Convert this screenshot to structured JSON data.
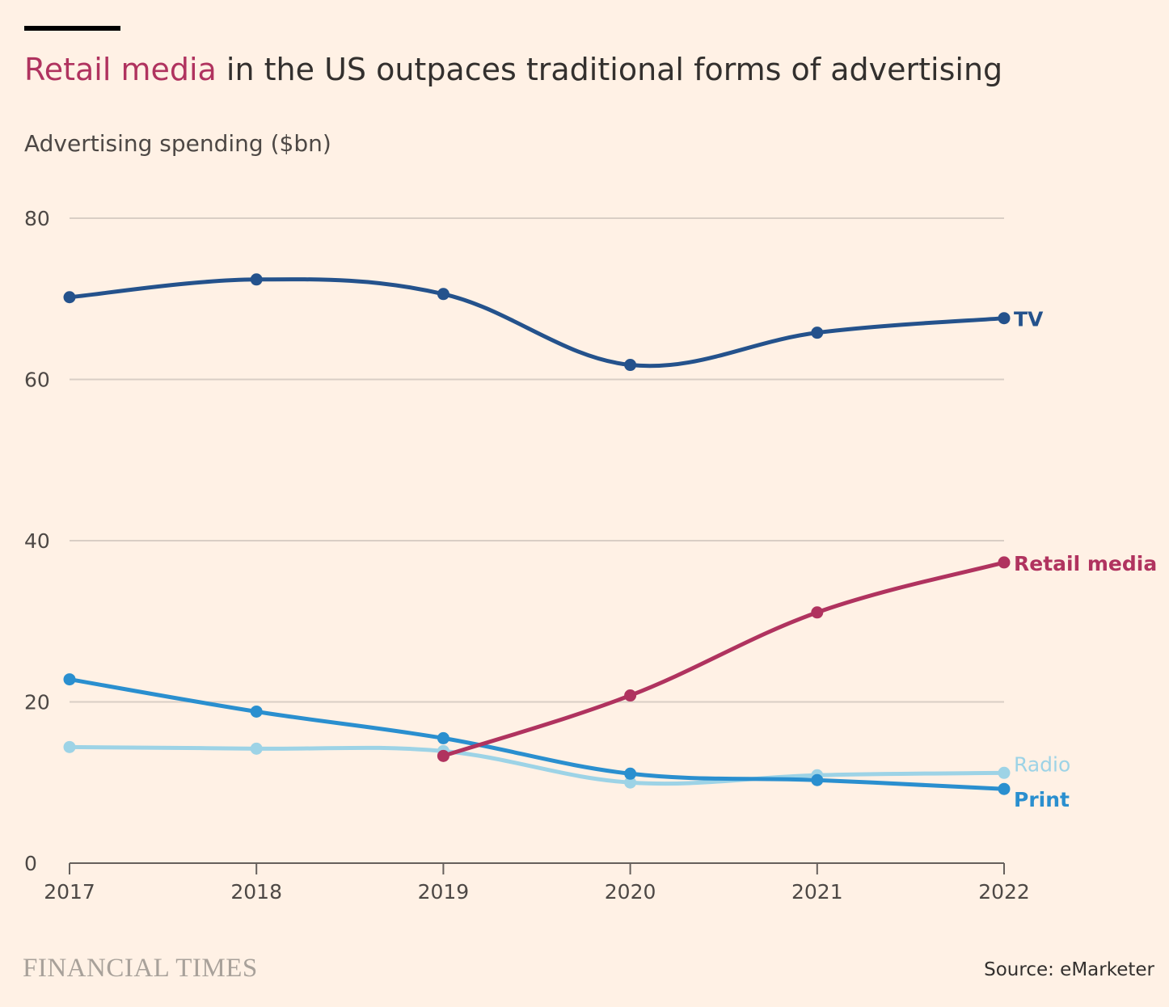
{
  "title": {
    "highlight": "Retail media",
    "rest": " in the US outpaces traditional forms of advertising"
  },
  "subtitle": "Advertising spending ($bn)",
  "footer": {
    "brand": "FINANCIAL TIMES",
    "source": "Source: eMarketer"
  },
  "colors": {
    "background": "#FFF1E5",
    "tv": "#24528C",
    "retail_media": "#B0335F",
    "radio": "#9DD3E6",
    "print": "#2A8FCF",
    "grid": "#D9CEC5",
    "axis": "#66605C"
  },
  "chart_data": {
    "type": "line",
    "x": [
      "2017",
      "2018",
      "2019",
      "2020",
      "2021",
      "2022"
    ],
    "ylim": [
      0,
      80
    ],
    "yticks": [
      "0",
      "20",
      "40",
      "60",
      "80"
    ],
    "grid": true,
    "legend": "direct labels at right end of lines",
    "series": [
      {
        "name": "TV",
        "key": "tv",
        "values": [
          70.2,
          72.4,
          70.6,
          61.8,
          65.8,
          67.6
        ]
      },
      {
        "name": "Radio",
        "key": "radio",
        "values": [
          14.4,
          14.2,
          13.9,
          10.0,
          10.9,
          11.2
        ]
      },
      {
        "name": "Print",
        "key": "print",
        "values": [
          22.8,
          18.8,
          15.5,
          11.1,
          10.3,
          9.2
        ]
      },
      {
        "name": "Retail media",
        "key": "retail_media",
        "values": [
          null,
          null,
          13.3,
          20.8,
          31.1,
          37.3
        ]
      }
    ]
  }
}
